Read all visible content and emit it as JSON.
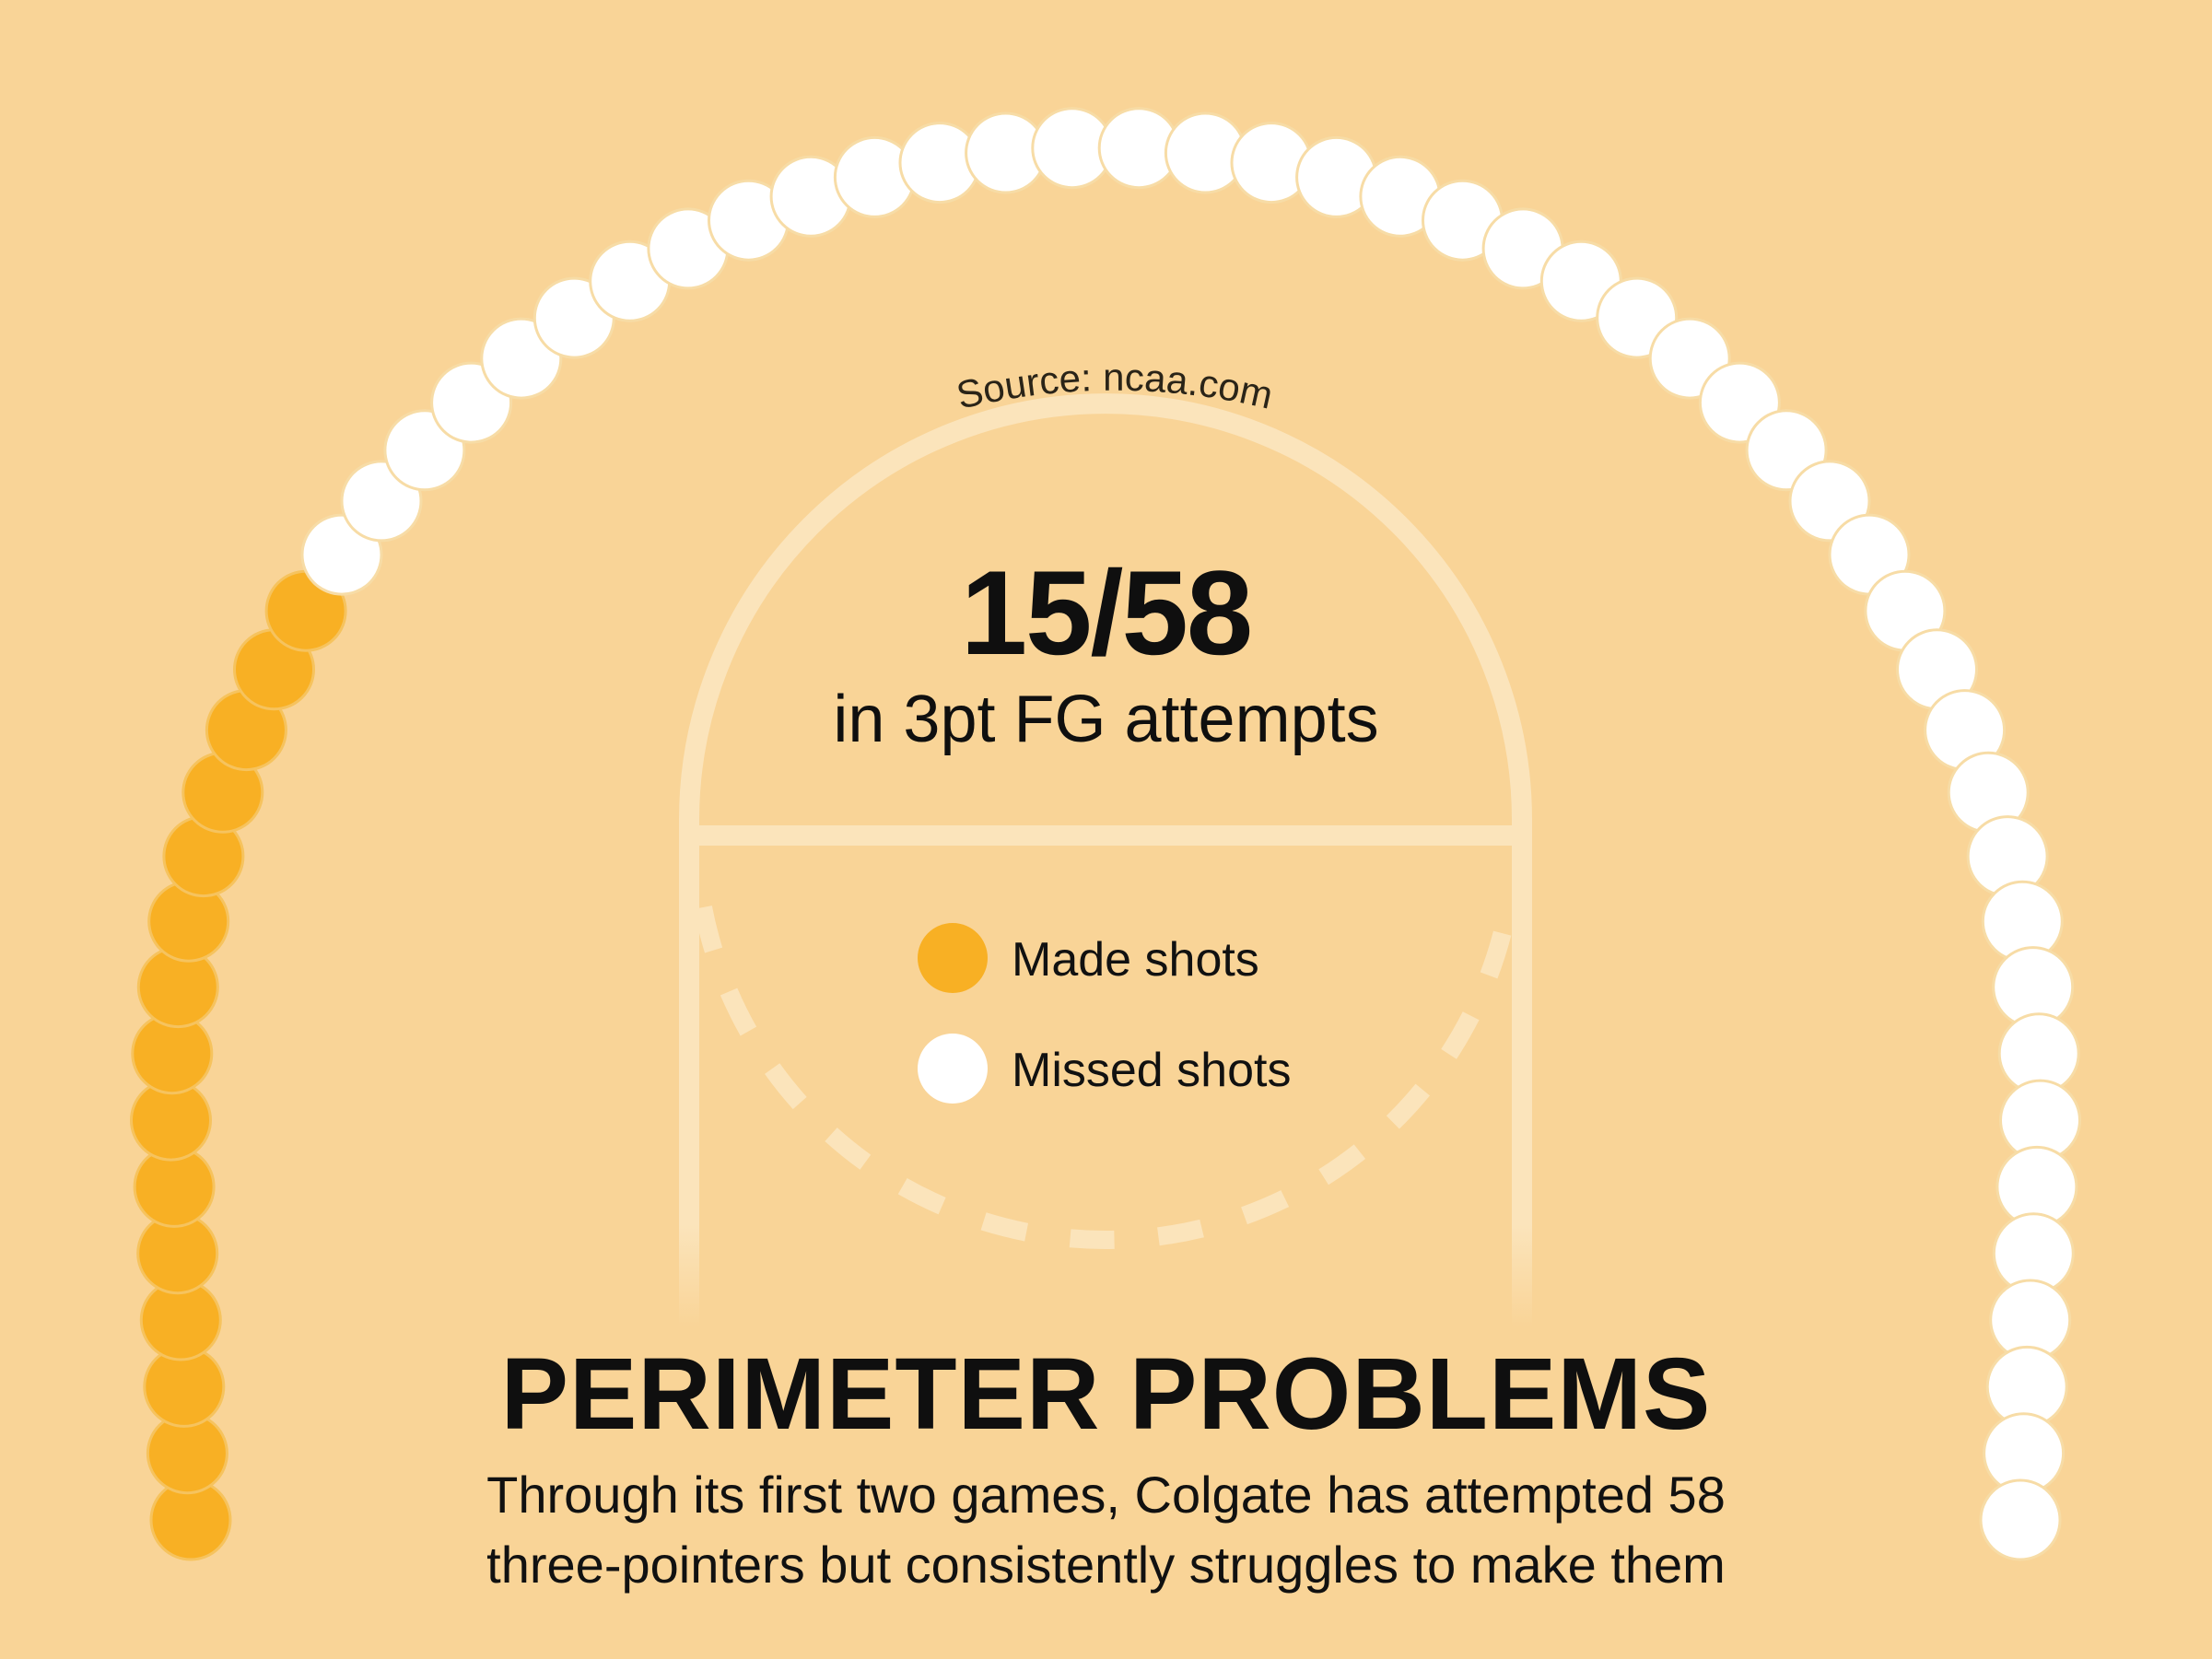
{
  "chart_data": {
    "type": "dot-arc",
    "made": 15,
    "attempts": 58,
    "missed": 43,
    "stat_text": "15/58",
    "stat_subtitle": "in 3pt FG attempts",
    "legend": [
      {
        "label": "Made shots",
        "color": "#f8b024"
      },
      {
        "label": "Missed shots",
        "color": "#ffffff"
      }
    ],
    "source": "Source: ncaa.com"
  },
  "title": "PERIMETER PROBLEMS",
  "description": [
    "Through its first two games, Colgate has attempted 58",
    "three-pointers but consistently struggles to make them"
  ],
  "colors": {
    "background": "#f9d497",
    "made": "#f8b024",
    "missed": "#ffffff",
    "court_lines": "#fbe4bb"
  }
}
